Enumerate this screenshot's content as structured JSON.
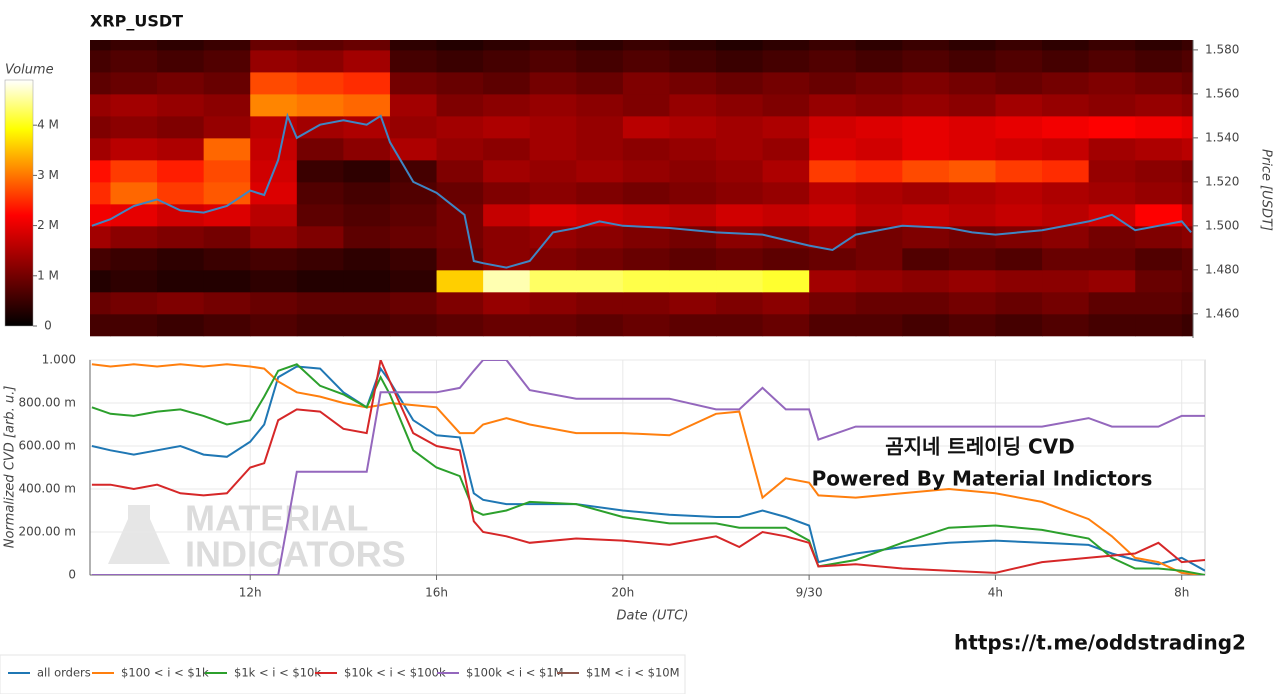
{
  "chart_data": [
    {
      "type": "heatmap",
      "title": "XRP_USDT",
      "colorbar_title": "Volume",
      "colormap": "hot",
      "x_edges": [
        8,
        9,
        10,
        11,
        12,
        13,
        14,
        15,
        16,
        17,
        18,
        19,
        20,
        21,
        22,
        23,
        24,
        25,
        26,
        27,
        28,
        29,
        30,
        31,
        32,
        33
      ],
      "y_edges": [
        1.45,
        1.46,
        1.47,
        1.48,
        1.49,
        1.5,
        1.51,
        1.52,
        1.53,
        1.54,
        1.55,
        1.56,
        1.57,
        1.58,
        1.59
      ],
      "z": [
        [
          0.6,
          0.6,
          0.5,
          0.6,
          0.7,
          0.6,
          0.6,
          0.7,
          0.8,
          0.9,
          0.9,
          0.8,
          0.9,
          0.8,
          0.8,
          0.9,
          0.7,
          0.7,
          0.6,
          0.7,
          0.6,
          0.7,
          0.6,
          0.6,
          0.5
        ],
        [
          0.9,
          1,
          1.1,
          1,
          0.9,
          0.8,
          0.8,
          0.9,
          1.1,
          1.3,
          1.2,
          1.1,
          1.1,
          1.2,
          1.1,
          1.2,
          1,
          0.9,
          0.9,
          1,
          0.9,
          1,
          0.8,
          0.8,
          0.7
        ],
        [
          0.3,
          0.4,
          0.3,
          0.3,
          0.4,
          0.3,
          0.3,
          0.4,
          3.6,
          4.6,
          4.3,
          4.3,
          4.2,
          4.2,
          4.2,
          4.1,
          1.4,
          1.3,
          1.2,
          1.3,
          1.2,
          1.2,
          1.3,
          0.9,
          0.8
        ],
        [
          0.6,
          0.5,
          0.4,
          0.5,
          0.6,
          0.5,
          0.4,
          0.5,
          0.9,
          1.2,
          1.1,
          1,
          0.9,
          0.8,
          0.9,
          0.8,
          0.9,
          1,
          0.7,
          0.8,
          0.7,
          0.9,
          0.9,
          0.7,
          0.8
        ],
        [
          1.4,
          1.2,
          1.1,
          1,
          1.3,
          1.1,
          0.8,
          0.9,
          1,
          1.2,
          1.3,
          1.2,
          1.1,
          1,
          1.2,
          1.1,
          1.3,
          1,
          1.1,
          1,
          1.1,
          1.2,
          1,
          1.1,
          1.2
        ],
        [
          2.1,
          2,
          1.8,
          1.9,
          1.6,
          0.8,
          0.7,
          0.8,
          1,
          1.7,
          1.9,
          1.8,
          1.7,
          1.6,
          1.8,
          1.7,
          1.8,
          1.6,
          1.7,
          1.6,
          1.7,
          1.6,
          1.8,
          2.2,
          1.7
        ],
        [
          2.5,
          2.9,
          2.6,
          2.8,
          1.9,
          0.7,
          0.6,
          0.7,
          0.9,
          1.1,
          1.2,
          1.1,
          1,
          1.1,
          1.2,
          1.3,
          1.6,
          1.5,
          1.4,
          1.5,
          1.6,
          1.5,
          1.4,
          1.3,
          1.2
        ],
        [
          2.3,
          2.6,
          2.4,
          2.7,
          1.8,
          0.5,
          0.4,
          0.6,
          1.1,
          1.4,
          1.3,
          1.4,
          1.3,
          1.2,
          1.3,
          1.5,
          2.6,
          2.5,
          2.7,
          2.8,
          2.6,
          2.5,
          1.3,
          1.2,
          1.1
        ],
        [
          1.4,
          1.6,
          1.5,
          2.9,
          1.7,
          1,
          1.2,
          1.5,
          1.3,
          1.2,
          1.4,
          1.3,
          1.2,
          1.3,
          1.4,
          1.3,
          1.9,
          1.8,
          2,
          1.9,
          1.8,
          1.7,
          1.4,
          1.5,
          1.6
        ],
        [
          1.1,
          1.2,
          1.1,
          1.3,
          1.6,
          1.4,
          1.5,
          1.3,
          1.4,
          1.5,
          1.4,
          1.3,
          1.6,
          1.5,
          1.4,
          1.5,
          1.8,
          1.9,
          2,
          1.9,
          2,
          2.1,
          2.2,
          2.1,
          2
        ],
        [
          1.3,
          1.4,
          1.3,
          1.2,
          3.1,
          3,
          2.9,
          1.4,
          1.1,
          1.2,
          1.3,
          1.2,
          1.1,
          1.3,
          1.2,
          1.1,
          1.3,
          1.2,
          1.3,
          1.2,
          1.4,
          1.3,
          1.2,
          1.3,
          1.2
        ],
        [
          0.8,
          0.9,
          1,
          0.9,
          2.7,
          2.6,
          2.5,
          1,
          0.9,
          0.8,
          1,
          0.9,
          1.1,
          1,
          0.9,
          1,
          0.9,
          1,
          1.1,
          1,
          0.9,
          1,
          1.1,
          1,
          0.9
        ],
        [
          0.6,
          0.7,
          0.6,
          0.7,
          1.3,
          1.2,
          1.4,
          0.6,
          0.5,
          0.6,
          0.7,
          0.6,
          0.7,
          0.6,
          0.5,
          0.6,
          0.7,
          0.6,
          0.7,
          0.6,
          0.7,
          0.6,
          0.7,
          0.6,
          0.7
        ],
        [
          0.4,
          0.5,
          0.4,
          0.5,
          0.9,
          0.8,
          0.9,
          0.4,
          0.3,
          0.4,
          0.5,
          0.4,
          0.5,
          0.4,
          0.3,
          0.4,
          0.5,
          0.4,
          0.5,
          0.4,
          0.5,
          0.4,
          0.5,
          0.4,
          0.5
        ]
      ],
      "clim": [
        0,
        4.9
      ],
      "cticks": [
        0,
        {
          "value": 1,
          "label": "1 M"
        },
        {
          "value": 2,
          "label": "2 M"
        },
        {
          "value": 3,
          "label": "3 M"
        },
        {
          "value": 4,
          "label": "4 M"
        }
      ],
      "xlim": [
        8.56,
        32.24
      ],
      "ylim": [
        1.449,
        1.5845
      ],
      "ylabel": "Price [USDT]",
      "yticks": [
        {
          "value": 1.46,
          "label": "1.460"
        },
        {
          "value": 1.48,
          "label": "1.480"
        },
        {
          "value": 1.5,
          "label": "1.500"
        },
        {
          "value": 1.52,
          "label": "1.520"
        },
        {
          "value": 1.54,
          "label": "1.540"
        },
        {
          "value": 1.56,
          "label": "1.560"
        },
        {
          "value": 1.58,
          "label": "1.580"
        }
      ],
      "line": {
        "color": "#3f86c4",
        "x": [
          8.6,
          9,
          9.5,
          10,
          10.5,
          11,
          11.5,
          12,
          12.3,
          12.6,
          12.8,
          13,
          13.5,
          14,
          14.5,
          14.8,
          15,
          15.5,
          16,
          16.3,
          16.6,
          16.8,
          17,
          17.5,
          18,
          18.5,
          19,
          19.5,
          20,
          21,
          22,
          23,
          24,
          24.5,
          25,
          26,
          27,
          27.5,
          28,
          29,
          30,
          30.5,
          31,
          31.5,
          32,
          32.2
        ],
        "values": [
          1.5,
          1.503,
          1.509,
          1.512,
          1.507,
          1.506,
          1.509,
          1.516,
          1.514,
          1.53,
          1.55,
          1.54,
          1.546,
          1.548,
          1.546,
          1.55,
          1.538,
          1.52,
          1.515,
          1.51,
          1.505,
          1.484,
          1.483,
          1.481,
          1.484,
          1.497,
          1.499,
          1.502,
          1.5,
          1.499,
          1.497,
          1.496,
          1.491,
          1.489,
          1.496,
          1.5,
          1.499,
          1.497,
          1.496,
          1.498,
          1.502,
          1.505,
          1.498,
          1.5,
          1.502,
          1.497
        ]
      }
    },
    {
      "type": "line",
      "xlabel": "Date (UTC)",
      "ylabel": "Normalized CVD [arb. u.]",
      "grid": true,
      "x": [
        8.6,
        9,
        9.5,
        10,
        10.5,
        11,
        11.5,
        12,
        12.3,
        12.6,
        13,
        13.5,
        14,
        14.5,
        14.8,
        15,
        15.5,
        16,
        16.5,
        16.8,
        17,
        17.5,
        18,
        19,
        20,
        21,
        22,
        22.5,
        23,
        23.5,
        24,
        24.2,
        25,
        26,
        27,
        28,
        29,
        30,
        30.5,
        31,
        31.5,
        32,
        32.5
      ],
      "xlim": [
        8.56,
        32.5
      ],
      "xticks": [
        {
          "value": 12,
          "label": "12h"
        },
        {
          "value": 16,
          "label": "16h"
        },
        {
          "value": 20,
          "label": "20h"
        },
        {
          "value": 24,
          "label": "9/30"
        },
        {
          "value": 28,
          "label": "4h"
        },
        {
          "value": 32,
          "label": "8h"
        }
      ],
      "ylim": [
        0,
        1
      ],
      "yticks": [
        0,
        {
          "value": 0.2,
          "label": "200.00 m"
        },
        {
          "value": 0.4,
          "label": "400.00 m"
        },
        {
          "value": 0.6,
          "label": "600.00 m"
        },
        {
          "value": 0.8,
          "label": "800.00 m"
        },
        {
          "value": 1,
          "label": "1.000"
        }
      ],
      "series": [
        {
          "name": "all orders",
          "color": "#1f77b4",
          "values": [
            0.6,
            0.58,
            0.56,
            0.58,
            0.6,
            0.56,
            0.55,
            0.62,
            0.7,
            0.92,
            0.97,
            0.96,
            0.85,
            0.78,
            0.96,
            0.9,
            0.72,
            0.65,
            0.64,
            0.38,
            0.35,
            0.33,
            0.33,
            0.33,
            0.3,
            0.28,
            0.27,
            0.27,
            0.3,
            0.27,
            0.23,
            0.06,
            0.1,
            0.13,
            0.15,
            0.16,
            0.15,
            0.14,
            0.1,
            0.07,
            0.05,
            0.08,
            0.02
          ]
        },
        {
          "name": "$100 < i < $1k",
          "color": "#ff7f0e",
          "values": [
            0.98,
            0.97,
            0.98,
            0.97,
            0.98,
            0.97,
            0.98,
            0.97,
            0.96,
            0.9,
            0.85,
            0.83,
            0.8,
            0.78,
            0.79,
            0.8,
            0.79,
            0.78,
            0.66,
            0.66,
            0.7,
            0.73,
            0.7,
            0.66,
            0.66,
            0.65,
            0.75,
            0.76,
            0.36,
            0.45,
            0.43,
            0.37,
            0.36,
            0.38,
            0.4,
            0.38,
            0.34,
            0.26,
            0.18,
            0.08,
            0.06,
            0.01,
            0
          ]
        },
        {
          "name": "$1k < i < $10k",
          "color": "#2ca02c",
          "values": [
            0.78,
            0.75,
            0.74,
            0.76,
            0.77,
            0.74,
            0.7,
            0.72,
            0.83,
            0.95,
            0.98,
            0.88,
            0.84,
            0.78,
            0.92,
            0.84,
            0.58,
            0.5,
            0.46,
            0.3,
            0.28,
            0.3,
            0.34,
            0.33,
            0.27,
            0.24,
            0.24,
            0.22,
            0.22,
            0.22,
            0.16,
            0.04,
            0.07,
            0.15,
            0.22,
            0.23,
            0.21,
            0.17,
            0.08,
            0.03,
            0.03,
            0.02,
            0
          ]
        },
        {
          "name": "$10k < i < $100k",
          "color": "#d62728",
          "values": [
            0.42,
            0.42,
            0.4,
            0.42,
            0.38,
            0.37,
            0.38,
            0.5,
            0.52,
            0.72,
            0.77,
            0.76,
            0.68,
            0.66,
            1,
            0.9,
            0.66,
            0.6,
            0.58,
            0.25,
            0.2,
            0.18,
            0.15,
            0.17,
            0.16,
            0.14,
            0.18,
            0.13,
            0.2,
            0.18,
            0.15,
            0.04,
            0.05,
            0.03,
            0.02,
            0.01,
            0.06,
            0.08,
            0.09,
            0.1,
            0.15,
            0.06,
            0.07
          ]
        },
        {
          "name": "$100k < i < $1M",
          "color": "#9467bd",
          "values": [
            0,
            0,
            0,
            0,
            0,
            0,
            0,
            0,
            0,
            0,
            0.48,
            0.48,
            0.48,
            0.48,
            0.85,
            0.85,
            0.85,
            0.85,
            0.87,
            0.95,
            1,
            1,
            0.86,
            0.82,
            0.82,
            0.82,
            0.77,
            0.77,
            0.87,
            0.77,
            0.77,
            0.63,
            0.69,
            0.69,
            0.69,
            0.69,
            0.69,
            0.73,
            0.69,
            0.69,
            0.69,
            0.74,
            0.74
          ]
        },
        {
          "name": "$1M < i < $10M",
          "color": "#8c564b",
          "values": [
            null,
            null,
            null,
            null,
            null,
            null,
            null,
            null,
            null,
            null,
            null,
            null,
            null,
            null,
            null,
            null,
            null,
            null,
            null,
            null,
            null,
            null,
            null,
            null,
            null,
            null,
            null,
            null,
            null,
            null,
            null,
            null,
            null,
            null,
            null,
            null,
            null,
            null,
            null,
            null,
            null,
            null,
            null
          ]
        }
      ],
      "annotations": [
        "곰지네 트레이딩 CVD",
        "Powered By Material Indictors"
      ],
      "watermark": [
        "MATERIAL",
        "INDICATORS"
      ],
      "link": "https://t.me/oddstrading2"
    }
  ]
}
